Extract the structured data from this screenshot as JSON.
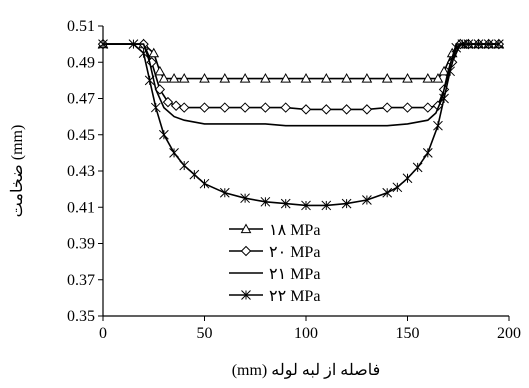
{
  "chart_data": {
    "type": "line",
    "xlabel": "(mm) فاصله از لبه لوله",
    "ylabel": "ضخامت (mm)",
    "xlim": [
      0,
      200
    ],
    "ylim": [
      0.35,
      0.51
    ],
    "x_ticks": [
      "0",
      "50",
      "100",
      "150",
      "200"
    ],
    "y_ticks": [
      "0.35",
      "0.37",
      "0.39",
      "0.41",
      "0.43",
      "0.45",
      "0.47",
      "0.49",
      "0.51"
    ],
    "grid": false,
    "legend_position": "bottom-center",
    "series": [
      {
        "name": "۱۸ MPa",
        "marker": "triangle",
        "x": [
          0,
          20,
          25,
          28,
          30,
          35,
          40,
          50,
          60,
          70,
          80,
          90,
          100,
          110,
          120,
          130,
          140,
          150,
          160,
          165,
          168,
          172,
          176,
          180,
          185,
          190,
          195
        ],
        "y": [
          0.5,
          0.5,
          0.495,
          0.485,
          0.481,
          0.481,
          0.481,
          0.481,
          0.481,
          0.481,
          0.481,
          0.481,
          0.481,
          0.481,
          0.481,
          0.481,
          0.481,
          0.481,
          0.481,
          0.481,
          0.485,
          0.495,
          0.5,
          0.5,
          0.5,
          0.5,
          0.5
        ]
      },
      {
        "name": "۲۰ MPa",
        "marker": "diamond",
        "x": [
          0,
          20,
          24,
          28,
          32,
          36,
          40,
          50,
          60,
          70,
          80,
          90,
          100,
          110,
          120,
          130,
          140,
          150,
          160,
          165,
          168,
          172,
          176,
          180,
          185,
          190,
          195
        ],
        "y": [
          0.5,
          0.5,
          0.49,
          0.475,
          0.468,
          0.466,
          0.465,
          0.465,
          0.465,
          0.465,
          0.465,
          0.465,
          0.464,
          0.464,
          0.464,
          0.464,
          0.465,
          0.465,
          0.465,
          0.466,
          0.475,
          0.49,
          0.5,
          0.5,
          0.5,
          0.5,
          0.5
        ]
      },
      {
        "name": "۲۱ MPa",
        "marker": "none",
        "x": [
          0,
          20,
          23,
          26,
          30,
          35,
          40,
          50,
          60,
          70,
          80,
          90,
          100,
          110,
          120,
          130,
          140,
          150,
          155,
          160,
          164,
          167,
          170,
          174,
          180,
          190,
          195
        ],
        "y": [
          0.5,
          0.5,
          0.49,
          0.475,
          0.465,
          0.46,
          0.458,
          0.456,
          0.456,
          0.456,
          0.456,
          0.455,
          0.455,
          0.455,
          0.455,
          0.455,
          0.455,
          0.456,
          0.457,
          0.458,
          0.462,
          0.47,
          0.485,
          0.5,
          0.5,
          0.5,
          0.5
        ]
      },
      {
        "name": "۲۲ MPa",
        "marker": "asterisk",
        "x": [
          0,
          15,
          20,
          23,
          26,
          30,
          35,
          40,
          45,
          50,
          60,
          70,
          80,
          90,
          100,
          110,
          120,
          130,
          140,
          145,
          150,
          155,
          160,
          165,
          168,
          171,
          174,
          177,
          180,
          185,
          190,
          195
        ],
        "y": [
          0.5,
          0.5,
          0.495,
          0.48,
          0.465,
          0.45,
          0.44,
          0.433,
          0.428,
          0.423,
          0.418,
          0.415,
          0.413,
          0.412,
          0.411,
          0.411,
          0.412,
          0.414,
          0.418,
          0.421,
          0.426,
          0.432,
          0.44,
          0.455,
          0.47,
          0.485,
          0.498,
          0.5,
          0.5,
          0.5,
          0.5,
          0.5
        ]
      }
    ]
  }
}
